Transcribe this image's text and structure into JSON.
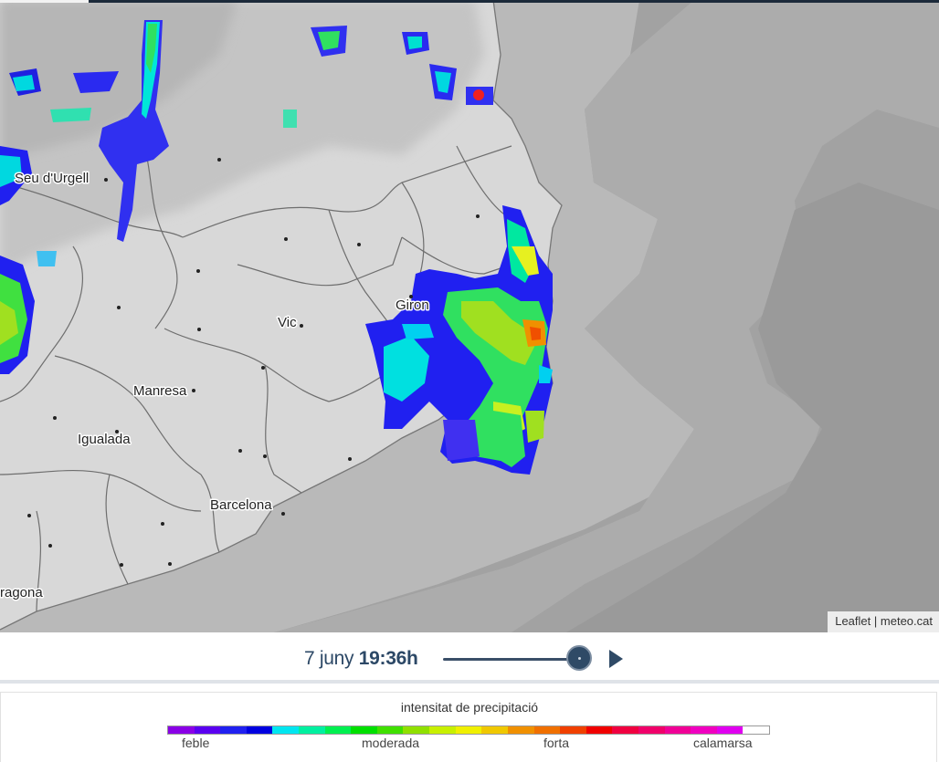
{
  "map": {
    "cities": [
      {
        "name": "la Seu d'Urgell",
        "display": "Seu d'Urgell"
      },
      {
        "name": "Girona",
        "display": "Giron"
      },
      {
        "name": "Vic",
        "display": "Vic"
      },
      {
        "name": "Manresa",
        "display": "Manresa"
      },
      {
        "name": "Igualada",
        "display": "Igualada"
      },
      {
        "name": "Barcelona",
        "display": "Barcelona"
      },
      {
        "name": "Tarragona",
        "display": "ragona"
      }
    ],
    "attribution": {
      "leaflet": "Leaflet",
      "separator": "|",
      "source": "meteo.cat"
    }
  },
  "timebar": {
    "date": "7 juny",
    "time": "19:36h",
    "slider_position": 0.9
  },
  "legend": {
    "title": "intensitat de precipitació",
    "labels": [
      "feble",
      "moderada",
      "forta",
      "calamarsa"
    ],
    "colors": [
      "#8a00e6",
      "#5a00f0",
      "#2020f0",
      "#0000e0",
      "#00e6f0",
      "#00f0a0",
      "#00f050",
      "#00e000",
      "#40e000",
      "#90e000",
      "#c8f000",
      "#f0f000",
      "#f0c800",
      "#f09000",
      "#f07000",
      "#f04000",
      "#f00000",
      "#f00040",
      "#f0006a",
      "#f00096",
      "#f000c0",
      "#e000f0",
      "#ffffff"
    ]
  }
}
